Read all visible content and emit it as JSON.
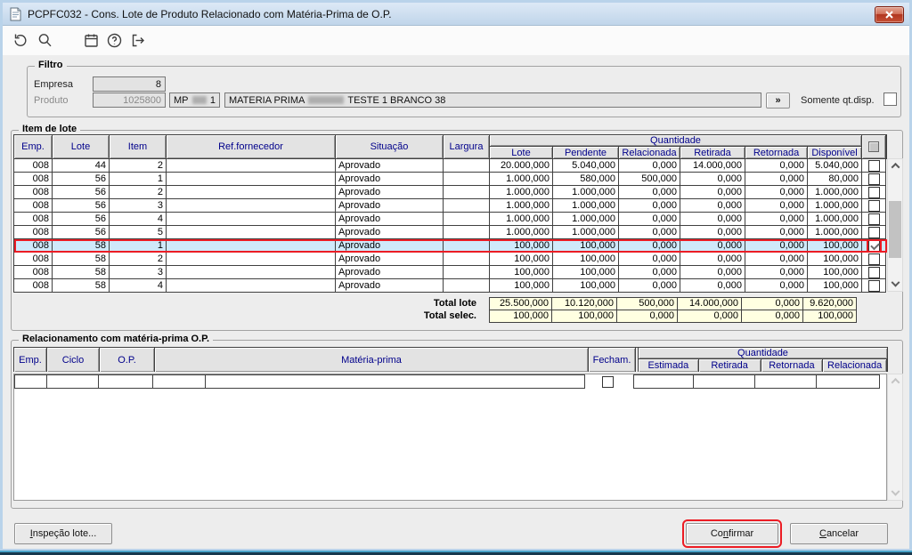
{
  "window": {
    "title": "PCPFC032 - Cons. Lote de Produto Relacionado com Matéria-Prima de O.P."
  },
  "toolbar": {
    "icons": [
      "undo",
      "search",
      "calendar",
      "help",
      "exit"
    ]
  },
  "filter": {
    "legend": "Filtro",
    "empresa_label": "Empresa",
    "empresa_value": "8",
    "produto_label": "Produto",
    "produto_code": "1025800",
    "produto_ref_prefix": "MP",
    "produto_ref_suffix": "1",
    "produto_desc_prefix": "MATERIA PRIMA",
    "produto_desc_suffix": "TESTE 1 BRANCO 38",
    "expand_button_label": "»",
    "somente_label": "Somente qt.disp.",
    "somente_checked": false
  },
  "lot_items": {
    "legend": "Item de lote",
    "columns": [
      "Emp.",
      "Lote",
      "Item",
      "Ref.fornecedor",
      "Situação",
      "Largura"
    ],
    "qty_group": "Quantidade",
    "qty_columns": [
      "Lote",
      "Pendente",
      "Relacionada",
      "Retirada",
      "Retornada",
      "Disponível"
    ],
    "rows": [
      {
        "emp": "008",
        "lote": "44",
        "item": "2",
        "ref": "",
        "situacao": "Aprovado",
        "largura": "",
        "qty": [
          "20.000,000",
          "5.040,000",
          "0,000",
          "14.000,000",
          "0,000",
          "5.040,000"
        ],
        "checked": false,
        "selected": false
      },
      {
        "emp": "008",
        "lote": "56",
        "item": "1",
        "ref": "",
        "situacao": "Aprovado",
        "largura": "",
        "qty": [
          "1.000,000",
          "580,000",
          "500,000",
          "0,000",
          "0,000",
          "80,000"
        ],
        "checked": false,
        "selected": false
      },
      {
        "emp": "008",
        "lote": "56",
        "item": "2",
        "ref": "",
        "situacao": "Aprovado",
        "largura": "",
        "qty": [
          "1.000,000",
          "1.000,000",
          "0,000",
          "0,000",
          "0,000",
          "1.000,000"
        ],
        "checked": false,
        "selected": false
      },
      {
        "emp": "008",
        "lote": "56",
        "item": "3",
        "ref": "",
        "situacao": "Aprovado",
        "largura": "",
        "qty": [
          "1.000,000",
          "1.000,000",
          "0,000",
          "0,000",
          "0,000",
          "1.000,000"
        ],
        "checked": false,
        "selected": false
      },
      {
        "emp": "008",
        "lote": "56",
        "item": "4",
        "ref": "",
        "situacao": "Aprovado",
        "largura": "",
        "qty": [
          "1.000,000",
          "1.000,000",
          "0,000",
          "0,000",
          "0,000",
          "1.000,000"
        ],
        "checked": false,
        "selected": false
      },
      {
        "emp": "008",
        "lote": "56",
        "item": "5",
        "ref": "",
        "situacao": "Aprovado",
        "largura": "",
        "qty": [
          "1.000,000",
          "1.000,000",
          "0,000",
          "0,000",
          "0,000",
          "1.000,000"
        ],
        "checked": false,
        "selected": false
      },
      {
        "emp": "008",
        "lote": "58",
        "item": "1",
        "ref": "",
        "situacao": "Aprovado",
        "largura": "",
        "qty": [
          "100,000",
          "100,000",
          "0,000",
          "0,000",
          "0,000",
          "100,000"
        ],
        "checked": true,
        "selected": true
      },
      {
        "emp": "008",
        "lote": "58",
        "item": "2",
        "ref": "",
        "situacao": "Aprovado",
        "largura": "",
        "qty": [
          "100,000",
          "100,000",
          "0,000",
          "0,000",
          "0,000",
          "100,000"
        ],
        "checked": false,
        "selected": false
      },
      {
        "emp": "008",
        "lote": "58",
        "item": "3",
        "ref": "",
        "situacao": "Aprovado",
        "largura": "",
        "qty": [
          "100,000",
          "100,000",
          "0,000",
          "0,000",
          "0,000",
          "100,000"
        ],
        "checked": false,
        "selected": false
      },
      {
        "emp": "008",
        "lote": "58",
        "item": "4",
        "ref": "",
        "situacao": "Aprovado",
        "largura": "",
        "qty": [
          "100,000",
          "100,000",
          "0,000",
          "0,000",
          "0,000",
          "100,000"
        ],
        "checked": false,
        "selected": false
      }
    ],
    "totals": [
      {
        "label": "Total lote",
        "values": [
          "25.500,000",
          "10.120,000",
          "500,000",
          "14.000,000",
          "0,000",
          "9.620,000"
        ]
      },
      {
        "label": "Total selec.",
        "values": [
          "100,000",
          "100,000",
          "0,000",
          "0,000",
          "0,000",
          "100,000"
        ]
      }
    ]
  },
  "relationship": {
    "legend": "Relacionamento com matéria-prima O.P.",
    "columns": [
      "Emp.",
      "Ciclo",
      "O.P.",
      "Matéria-prima"
    ],
    "fecham_label": "Fecham.",
    "qty_group": "Quantidade",
    "qty_columns": [
      "Estimada",
      "Retirada",
      "Retornada",
      "Relacionada"
    ],
    "fecham_checked": false
  },
  "footer": {
    "inspecao": {
      "label": "Inspeção lote...",
      "u": 0
    },
    "confirmar": {
      "label": "Confirmar",
      "u": 2
    },
    "cancelar": {
      "label": "Cancelar",
      "u": 0
    }
  },
  "colors": {
    "header_text": "#00008b",
    "selected_row_bg": "#cfe9fa",
    "highlight_red": "#ec1c24",
    "totals_bg": "#ffffe1",
    "titlebar_top": "#dde9f6",
    "titlebar_bottom": "#c0d5ea"
  }
}
